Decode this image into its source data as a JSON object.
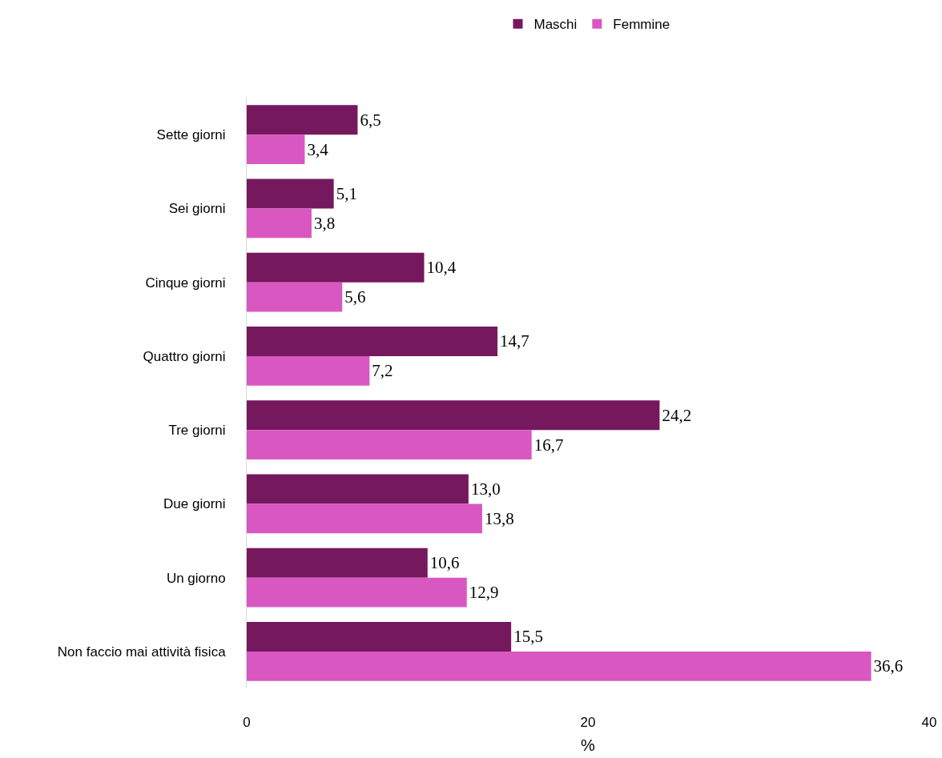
{
  "chart_data": {
    "type": "bar",
    "orientation": "horizontal",
    "xlabel": "%",
    "categories": [
      "Sette giorni",
      "Sei giorni",
      "Cinque giorni",
      "Quattro giorni",
      "Tre giorni",
      "Due giorni",
      "Un giorno",
      "Non faccio mai attività fisica"
    ],
    "series": [
      {
        "name": "Maschi",
        "color": "#75185e",
        "values": [
          6.5,
          5.1,
          10.4,
          14.7,
          24.2,
          13.0,
          10.6,
          15.5
        ],
        "value_labels": [
          "6,5",
          "5,1",
          "10,4",
          "14,7",
          "24,2",
          "13,0",
          "10,6",
          "15,5"
        ]
      },
      {
        "name": "Femmine",
        "color": "#d957c0",
        "values": [
          3.4,
          3.8,
          5.6,
          7.2,
          16.7,
          13.8,
          12.9,
          36.6
        ],
        "value_labels": [
          "3,4",
          "3,8",
          "5,6",
          "7,2",
          "16,7",
          "13,8",
          "12,9",
          "36,6"
        ]
      }
    ],
    "xlim": [
      0,
      40
    ],
    "xticks": [
      0,
      20,
      40
    ],
    "grid": false,
    "legend": "top"
  }
}
